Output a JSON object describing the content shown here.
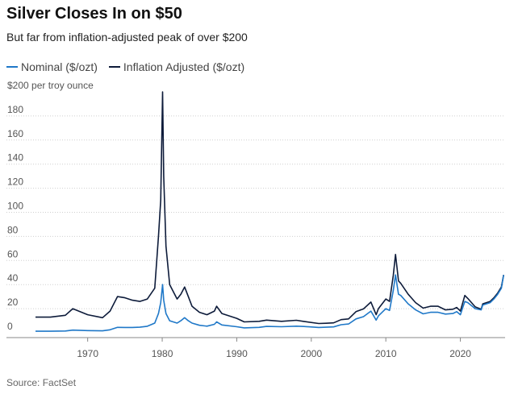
{
  "header": {
    "title": "Silver Closes In on $50",
    "subtitle": "But far from inflation-adjusted peak of over $200"
  },
  "source": "Source: FactSet",
  "colors": {
    "nominal": "#1f78c8",
    "inflation_adjusted": "#0d1b3a",
    "grid": "#cfcfcf",
    "axis": "#888888"
  },
  "chart_data": {
    "type": "line",
    "ylabel": "$200 per troy ounce",
    "ylim": [
      0,
      200
    ],
    "xlim": [
      1963,
      2026
    ],
    "y_ticks": [
      0,
      20,
      40,
      60,
      80,
      100,
      120,
      140,
      160,
      180
    ],
    "y_tick_labels": [
      "0",
      "20",
      "40",
      "60",
      "80",
      "100",
      "120",
      "140",
      "160",
      "180"
    ],
    "x_ticks": [
      1970,
      1980,
      1990,
      2000,
      2010,
      2020
    ],
    "x_tick_labels": [
      "1970",
      "1980",
      "1990",
      "2000",
      "2010",
      "2020"
    ],
    "grid": true,
    "legend": "top-left",
    "series": [
      {
        "name": "Nominal ($/ozt)",
        "x": [
          1963,
          1965,
          1967,
          1968,
          1970,
          1972,
          1973,
          1974,
          1975,
          1976,
          1977,
          1978,
          1979,
          1979.5,
          1979.8,
          1980.05,
          1980.2,
          1980.5,
          1981,
          1982,
          1982.5,
          1983,
          1983.5,
          1984,
          1985,
          1986,
          1987,
          1987.3,
          1988,
          1990,
          1991,
          1993,
          1994,
          1996,
          1998,
          1999,
          2001,
          2002,
          2003,
          2004,
          2005,
          2006,
          2007,
          2008,
          2008.7,
          2009,
          2010,
          2010.5,
          2011,
          2011.3,
          2011.7,
          2012,
          2013,
          2014,
          2015,
          2016,
          2017,
          2018,
          2019,
          2019.5,
          2020,
          2020.6,
          2021,
          2022,
          2022.8,
          2023,
          2024,
          2024.5,
          2025,
          2025.5,
          2025.8
        ],
        "y": [
          1.3,
          1.3,
          1.5,
          2.2,
          1.8,
          1.6,
          2.5,
          4.5,
          4.4,
          4.4,
          4.6,
          5.4,
          8,
          16,
          25,
          40,
          27,
          16,
          10,
          8,
          10,
          12.5,
          10,
          8,
          6.2,
          5.5,
          7,
          9,
          6.5,
          5,
          4.1,
          4.5,
          5.3,
          5,
          5.5,
          5.2,
          4.4,
          4.6,
          4.9,
          6.7,
          7.3,
          11.5,
          13.4,
          18,
          10.5,
          14,
          20,
          18.5,
          35,
          48,
          32,
          31,
          24,
          19,
          15.7,
          17,
          17,
          15.5,
          16,
          17.5,
          15,
          26,
          25,
          20,
          19,
          23,
          25,
          28,
          32,
          37,
          48
        ]
      },
      {
        "name": "Inflation Adjusted ($/ozt)",
        "x": [
          1963,
          1965,
          1967,
          1968,
          1970,
          1972,
          1973,
          1974,
          1975,
          1976,
          1977,
          1978,
          1979,
          1979.5,
          1979.8,
          1980.05,
          1980.2,
          1980.5,
          1981,
          1982,
          1982.5,
          1983,
          1983.5,
          1984,
          1985,
          1986,
          1987,
          1987.3,
          1988,
          1990,
          1991,
          1993,
          1994,
          1996,
          1998,
          1999,
          2001,
          2002,
          2003,
          2004,
          2005,
          2006,
          2007,
          2008,
          2008.7,
          2009,
          2010,
          2010.5,
          2011,
          2011.3,
          2011.7,
          2012,
          2013,
          2014,
          2015,
          2016,
          2017,
          2018,
          2019,
          2019.5,
          2020,
          2020.6,
          2021,
          2022,
          2022.8,
          2023,
          2024,
          2024.5,
          2025,
          2025.5,
          2025.8
        ],
        "y": [
          13,
          13,
          14.5,
          20,
          15,
          12.5,
          18,
          30,
          29,
          27,
          26,
          28,
          37,
          80,
          110,
          200,
          130,
          72,
          40,
          28,
          32,
          38,
          30,
          22,
          17,
          15,
          18,
          22,
          16,
          12,
          9,
          9.5,
          10.5,
          9.5,
          10.4,
          9.4,
          7.7,
          7.9,
          8.2,
          10.9,
          11.5,
          17.5,
          19.8,
          25.5,
          15,
          20,
          28,
          26,
          47.5,
          65,
          43,
          41,
          32,
          25,
          20.5,
          22,
          22,
          19,
          19.5,
          21,
          18,
          31,
          28.5,
          21.5,
          19.5,
          24,
          26,
          29,
          33,
          38,
          48
        ]
      }
    ]
  }
}
